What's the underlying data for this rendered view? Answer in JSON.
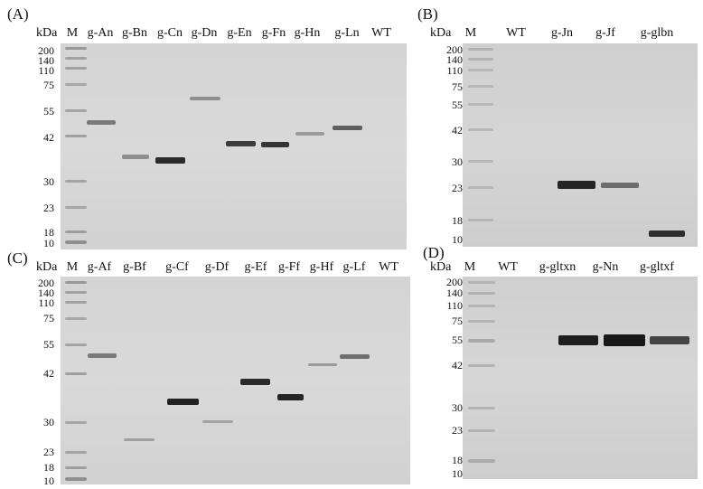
{
  "panels": [
    {
      "id": "A",
      "label": "(A)",
      "kda_label": "kDa",
      "marker_label": "M",
      "lanes": [
        "g-An",
        "g-Bn",
        "g-Cn",
        "g-Dn",
        "g-En",
        "g-Fn",
        "g-Hn",
        "g-Ln",
        "WT"
      ],
      "ticks": [
        "200",
        "140",
        "110",
        "75",
        "55",
        "42",
        "30",
        "23",
        "18",
        "10"
      ]
    },
    {
      "id": "B",
      "label": "(B)",
      "kda_label": "kDa",
      "marker_label": "M",
      "lanes": [
        "WT",
        "g-Jn",
        "g-Jf",
        "g-glbn"
      ],
      "ticks": [
        "200",
        "140",
        "110",
        "75",
        "55",
        "42",
        "30",
        "23",
        "18",
        "10"
      ]
    },
    {
      "id": "C",
      "label": "(C)",
      "kda_label": "kDa",
      "marker_label": "M",
      "lanes": [
        "g-Af",
        "g-Bf",
        "g-Cf",
        "g-Df",
        "g-Ef",
        "g-Ff",
        "g-Hf",
        "g-Lf",
        "WT"
      ],
      "ticks": [
        "200",
        "140",
        "110",
        "75",
        "55",
        "42",
        "30",
        "23",
        "18",
        "10"
      ]
    },
    {
      "id": "D",
      "label": "(D)",
      "kda_label": "kDa",
      "marker_label": "M",
      "lanes": [
        "WT",
        "g-gltxn",
        "g-Nn",
        "g-gltxf"
      ],
      "ticks": [
        "200",
        "140",
        "110",
        "75",
        "55",
        "42",
        "30",
        "23",
        "18",
        "10"
      ]
    }
  ]
}
